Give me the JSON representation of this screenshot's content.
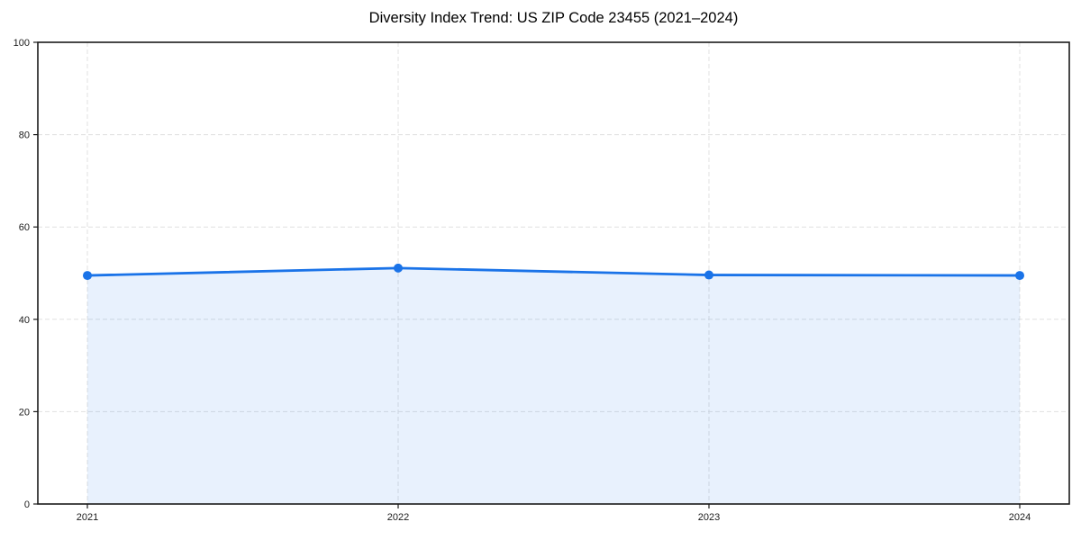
{
  "page": {
    "background": "#ffffff"
  },
  "chart_data": {
    "type": "area",
    "title": "Diversity Index Trend: US ZIP Code 23455 (2021–2024)",
    "categories": [
      "2021",
      "2022",
      "2023",
      "2024"
    ],
    "values": [
      49.5,
      51.1,
      49.6,
      49.5
    ],
    "xlabel": "",
    "ylabel": "",
    "ylim": [
      0,
      100
    ],
    "yticks": [
      0,
      20,
      40,
      60,
      80,
      100
    ],
    "grid": true,
    "grid_style": "dashed",
    "legend_position": "none",
    "colors": {
      "line": "#1a73e8",
      "marker": "#1a73e8",
      "fill": "#1a73e8",
      "fill_opacity": 0.1,
      "grid": "#e0e0e0",
      "axis": "#1a1a1a",
      "tick_label": "#1a1a1a",
      "title": "#000000",
      "background": "#ffffff"
    }
  }
}
